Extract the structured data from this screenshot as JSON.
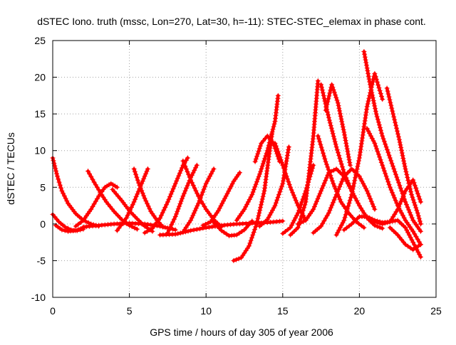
{
  "chart_data": {
    "type": "scatter",
    "title": "dSTEC Iono. truth (mssc, Lon=270, Lat=30, h=-11): STEC-STEC_elemax in phase cont.",
    "xlabel": "GPS time / hours of day 305 of year 2006",
    "ylabel": "dSTEC  / TECUs",
    "xlim": [
      0,
      25
    ],
    "ylim": [
      -10,
      25
    ],
    "xticks": [
      0,
      5,
      10,
      15,
      20,
      25
    ],
    "yticks": [
      -10,
      -5,
      0,
      5,
      10,
      15,
      20,
      25
    ],
    "grid": true,
    "marker": "plus",
    "color": "#ff0000",
    "series": [
      {
        "x": [
          0.0,
          0.3,
          0.6,
          1.0,
          1.5,
          2.0,
          2.5,
          3.0
        ],
        "y": [
          9.0,
          6.5,
          4.5,
          2.8,
          1.4,
          0.5,
          0.0,
          -0.3
        ]
      },
      {
        "x": [
          0.0,
          0.4,
          0.8,
          1.2,
          1.6,
          2.0
        ],
        "y": [
          1.3,
          0.3,
          -0.4,
          -0.8,
          -0.9,
          -0.7
        ]
      },
      {
        "x": [
          0.2,
          0.6,
          1.0,
          1.5,
          2.0
        ],
        "y": [
          -0.2,
          -0.8,
          -1.0,
          -0.9,
          -0.5
        ]
      },
      {
        "x": [
          2.3,
          2.7,
          3.1,
          3.5,
          4.0,
          4.5,
          5.0,
          5.5
        ],
        "y": [
          7.2,
          5.7,
          4.3,
          3.0,
          1.7,
          0.6,
          -0.2,
          -0.7
        ]
      },
      {
        "x": [
          1.5,
          2.0,
          2.5,
          3.0,
          3.4,
          3.8,
          4.2
        ],
        "y": [
          -0.3,
          0.5,
          2.0,
          3.8,
          5.0,
          5.5,
          5.0
        ]
      },
      {
        "x": [
          3.9,
          4.5,
          5.0,
          5.5,
          6.0,
          6.5
        ],
        "y": [
          4.7,
          3.2,
          1.8,
          0.7,
          -0.3,
          -1.0
        ]
      },
      {
        "x": [
          5.3,
          5.6,
          6.0,
          6.4,
          6.8,
          7.2
        ],
        "y": [
          7.5,
          5.6,
          3.5,
          1.7,
          0.5,
          -0.4
        ]
      },
      {
        "x": [
          4.2,
          4.8,
          5.3,
          5.8,
          6.2
        ],
        "y": [
          -0.9,
          0.8,
          3.0,
          5.5,
          7.5
        ]
      },
      {
        "x": [
          6.0,
          6.5,
          7.0,
          7.5,
          8.0,
          8.5,
          8.8
        ],
        "y": [
          -1.2,
          -0.6,
          0.8,
          3.0,
          5.5,
          8.0,
          9.0
        ]
      },
      {
        "x": [
          8.5,
          9.0,
          9.5,
          10.0,
          10.5,
          11.0
        ],
        "y": [
          8.6,
          6.0,
          3.8,
          2.0,
          0.6,
          -0.4
        ]
      },
      {
        "x": [
          7.5,
          8.0,
          8.5,
          9.0,
          9.4
        ],
        "y": [
          -1.2,
          1.0,
          3.8,
          6.3,
          8.0
        ]
      },
      {
        "x": [
          8.5,
          9.0,
          9.5,
          10.0,
          10.5
        ],
        "y": [
          -1.1,
          0.5,
          2.8,
          5.5,
          7.5
        ]
      },
      {
        "x": [
          9.8,
          10.3,
          10.8,
          11.3,
          11.8,
          12.2
        ],
        "y": [
          -0.2,
          0.3,
          1.8,
          3.8,
          5.8,
          7.0
        ]
      },
      {
        "x": [
          7.0,
          8.0,
          9.0,
          10.0,
          11.0,
          12.0,
          13.0,
          14.0,
          15.0
        ],
        "y": [
          -1.5,
          -1.4,
          -0.9,
          -0.5,
          -0.2,
          0.0,
          0.1,
          0.2,
          0.4
        ]
      },
      {
        "x": [
          2.0,
          3.0,
          4.0,
          5.0,
          6.0,
          7.0,
          8.0
        ],
        "y": [
          -0.4,
          -0.2,
          0.0,
          0.1,
          0.0,
          -0.3,
          -0.8
        ]
      },
      {
        "x": [
          10.5,
          11.0,
          11.5,
          12.0,
          12.5,
          13.0
        ],
        "y": [
          0.2,
          -0.9,
          -1.6,
          -1.5,
          -0.8,
          0.4
        ]
      },
      {
        "x": [
          11.8,
          12.3,
          12.8,
          13.3,
          13.8,
          14.3
        ],
        "y": [
          -5.0,
          -4.6,
          -3.0,
          0.0,
          4.5,
          12.3
        ]
      },
      {
        "x": [
          12.0,
          12.5,
          13.0,
          13.5,
          14.0,
          14.5,
          14.7
        ],
        "y": [
          0.5,
          2.0,
          4.0,
          6.8,
          10.0,
          14.0,
          17.5
        ]
      },
      {
        "x": [
          13.2,
          13.6,
          14.0,
          14.4,
          14.8
        ],
        "y": [
          8.5,
          11.0,
          12.0,
          11.0,
          8.5
        ]
      },
      {
        "x": [
          14.5,
          15.0,
          15.5,
          16.0,
          16.5
        ],
        "y": [
          11.0,
          8.0,
          5.0,
          2.5,
          0.5
        ]
      },
      {
        "x": [
          13.5,
          14.0,
          14.5,
          15.0,
          15.4
        ],
        "y": [
          -0.3,
          0.6,
          2.5,
          5.5,
          10.5
        ]
      },
      {
        "x": [
          15.0,
          15.5,
          16.0,
          16.5,
          17.0
        ],
        "y": [
          -1.3,
          -0.5,
          1.5,
          4.5,
          8.0
        ]
      },
      {
        "x": [
          15.5,
          16.0,
          16.5,
          17.0,
          17.3
        ],
        "y": [
          -1.5,
          -0.5,
          3.0,
          12.0,
          19.5
        ]
      },
      {
        "x": [
          17.3,
          17.8,
          18.3,
          18.8,
          19.3,
          19.8,
          20.3
        ],
        "y": [
          12.0,
          8.5,
          5.5,
          3.0,
          1.5,
          0.3,
          -0.5
        ]
      },
      {
        "x": [
          16.0,
          16.5,
          17.0,
          17.5,
          18.0,
          18.5,
          19.0,
          19.5
        ],
        "y": [
          0.0,
          0.5,
          2.0,
          4.5,
          7.0,
          7.5,
          6.5,
          4.5
        ]
      },
      {
        "x": [
          17.5,
          18.0,
          18.5,
          19.0,
          19.5,
          20.0,
          20.5,
          21.0,
          21.5
        ],
        "y": [
          19.0,
          14.5,
          10.5,
          7.0,
          4.5,
          2.5,
          0.8,
          -0.2,
          -0.6
        ]
      },
      {
        "x": [
          17.0,
          17.5,
          18.0,
          18.5,
          19.0,
          19.5,
          20.0,
          20.5,
          21.0
        ],
        "y": [
          -1.2,
          -0.3,
          1.5,
          4.0,
          6.5,
          7.5,
          6.5,
          4.5,
          2.0
        ]
      },
      {
        "x": [
          17.8,
          18.2,
          18.6,
          19.0,
          19.4
        ],
        "y": [
          15.5,
          19.0,
          16.5,
          12.5,
          8.0
        ]
      },
      {
        "x": [
          18.5,
          19.0,
          19.5,
          20.0,
          20.5,
          21.0,
          21.5
        ],
        "y": [
          -1.5,
          0.5,
          4.0,
          9.0,
          16.0,
          20.5,
          17.0
        ]
      },
      {
        "x": [
          20.3,
          20.7,
          21.1,
          21.5,
          22.0,
          22.5,
          23.0,
          23.5,
          24.0
        ],
        "y": [
          23.5,
          19.0,
          15.0,
          12.0,
          9.0,
          6.0,
          3.0,
          0.5,
          -1.0
        ]
      },
      {
        "x": [
          20.5,
          21.0,
          21.5,
          22.0,
          22.5,
          23.0,
          23.5,
          24.0
        ],
        "y": [
          13.0,
          11.0,
          8.0,
          5.0,
          2.5,
          0.5,
          -1.0,
          -2.8
        ]
      },
      {
        "x": [
          21.8,
          22.2,
          22.6,
          23.0,
          23.4,
          23.8,
          24.0
        ],
        "y": [
          18.5,
          15.0,
          11.5,
          7.5,
          4.0,
          1.5,
          0.0
        ]
      },
      {
        "x": [
          19.0,
          19.5,
          20.0,
          20.5,
          21.0,
          21.5,
          22.0,
          22.5,
          23.0,
          23.5,
          24.0
        ],
        "y": [
          -0.8,
          0.0,
          1.0,
          1.0,
          0.5,
          0.2,
          0.3,
          0.5,
          -0.5,
          -2.5,
          -4.5
        ]
      },
      {
        "x": [
          21.0,
          21.5,
          22.0,
          22.5,
          23.0,
          23.5,
          24.0
        ],
        "y": [
          0.3,
          0.0,
          0.3,
          2.0,
          4.5,
          6.0,
          3.0
        ]
      },
      {
        "x": [
          22.0,
          22.5,
          23.0,
          23.5,
          24.0
        ],
        "y": [
          -0.5,
          -1.5,
          -2.8,
          -3.5,
          -2.8
        ]
      }
    ]
  }
}
